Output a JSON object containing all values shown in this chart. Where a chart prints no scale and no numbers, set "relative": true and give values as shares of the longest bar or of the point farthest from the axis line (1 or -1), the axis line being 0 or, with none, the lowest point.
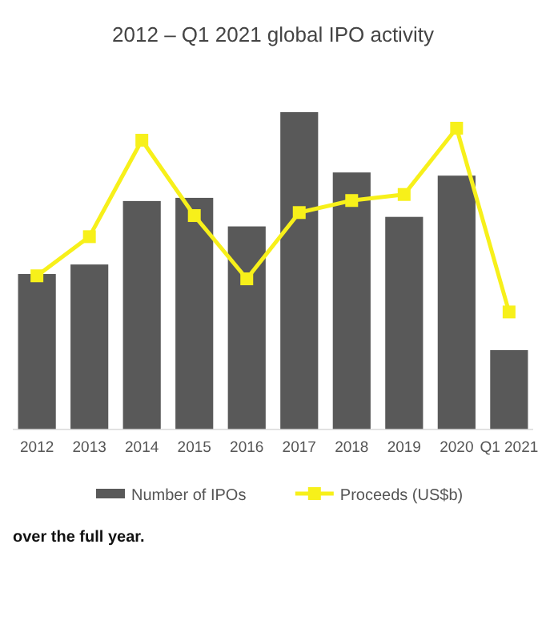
{
  "chart_data": {
    "type": "bar",
    "title": "2012 – Q1 2021 global IPO activity",
    "relative": true,
    "categories": [
      "2012",
      "2013",
      "2014",
      "2015",
      "2016",
      "2017",
      "2018",
      "2019",
      "2020",
      "Q1 2021"
    ],
    "series": [
      {
        "name": "Number of IPOs",
        "color": "#595959",
        "values": [
          0.49,
          0.52,
          0.72,
          0.73,
          0.64,
          1,
          0.81,
          0.67,
          0.8,
          0.25
        ]
      },
      {
        "name": "Proceeds (US$b)",
        "type": "line",
        "axis": "y2",
        "color": "#f7f01a",
        "marker": "square",
        "values": [
          0.51,
          0.64,
          0.96,
          0.71,
          0.5,
          0.72,
          0.76,
          0.78,
          1,
          0.39
        ]
      }
    ],
    "legend": "bottom",
    "annotations": [
      "over the full year."
    ]
  }
}
